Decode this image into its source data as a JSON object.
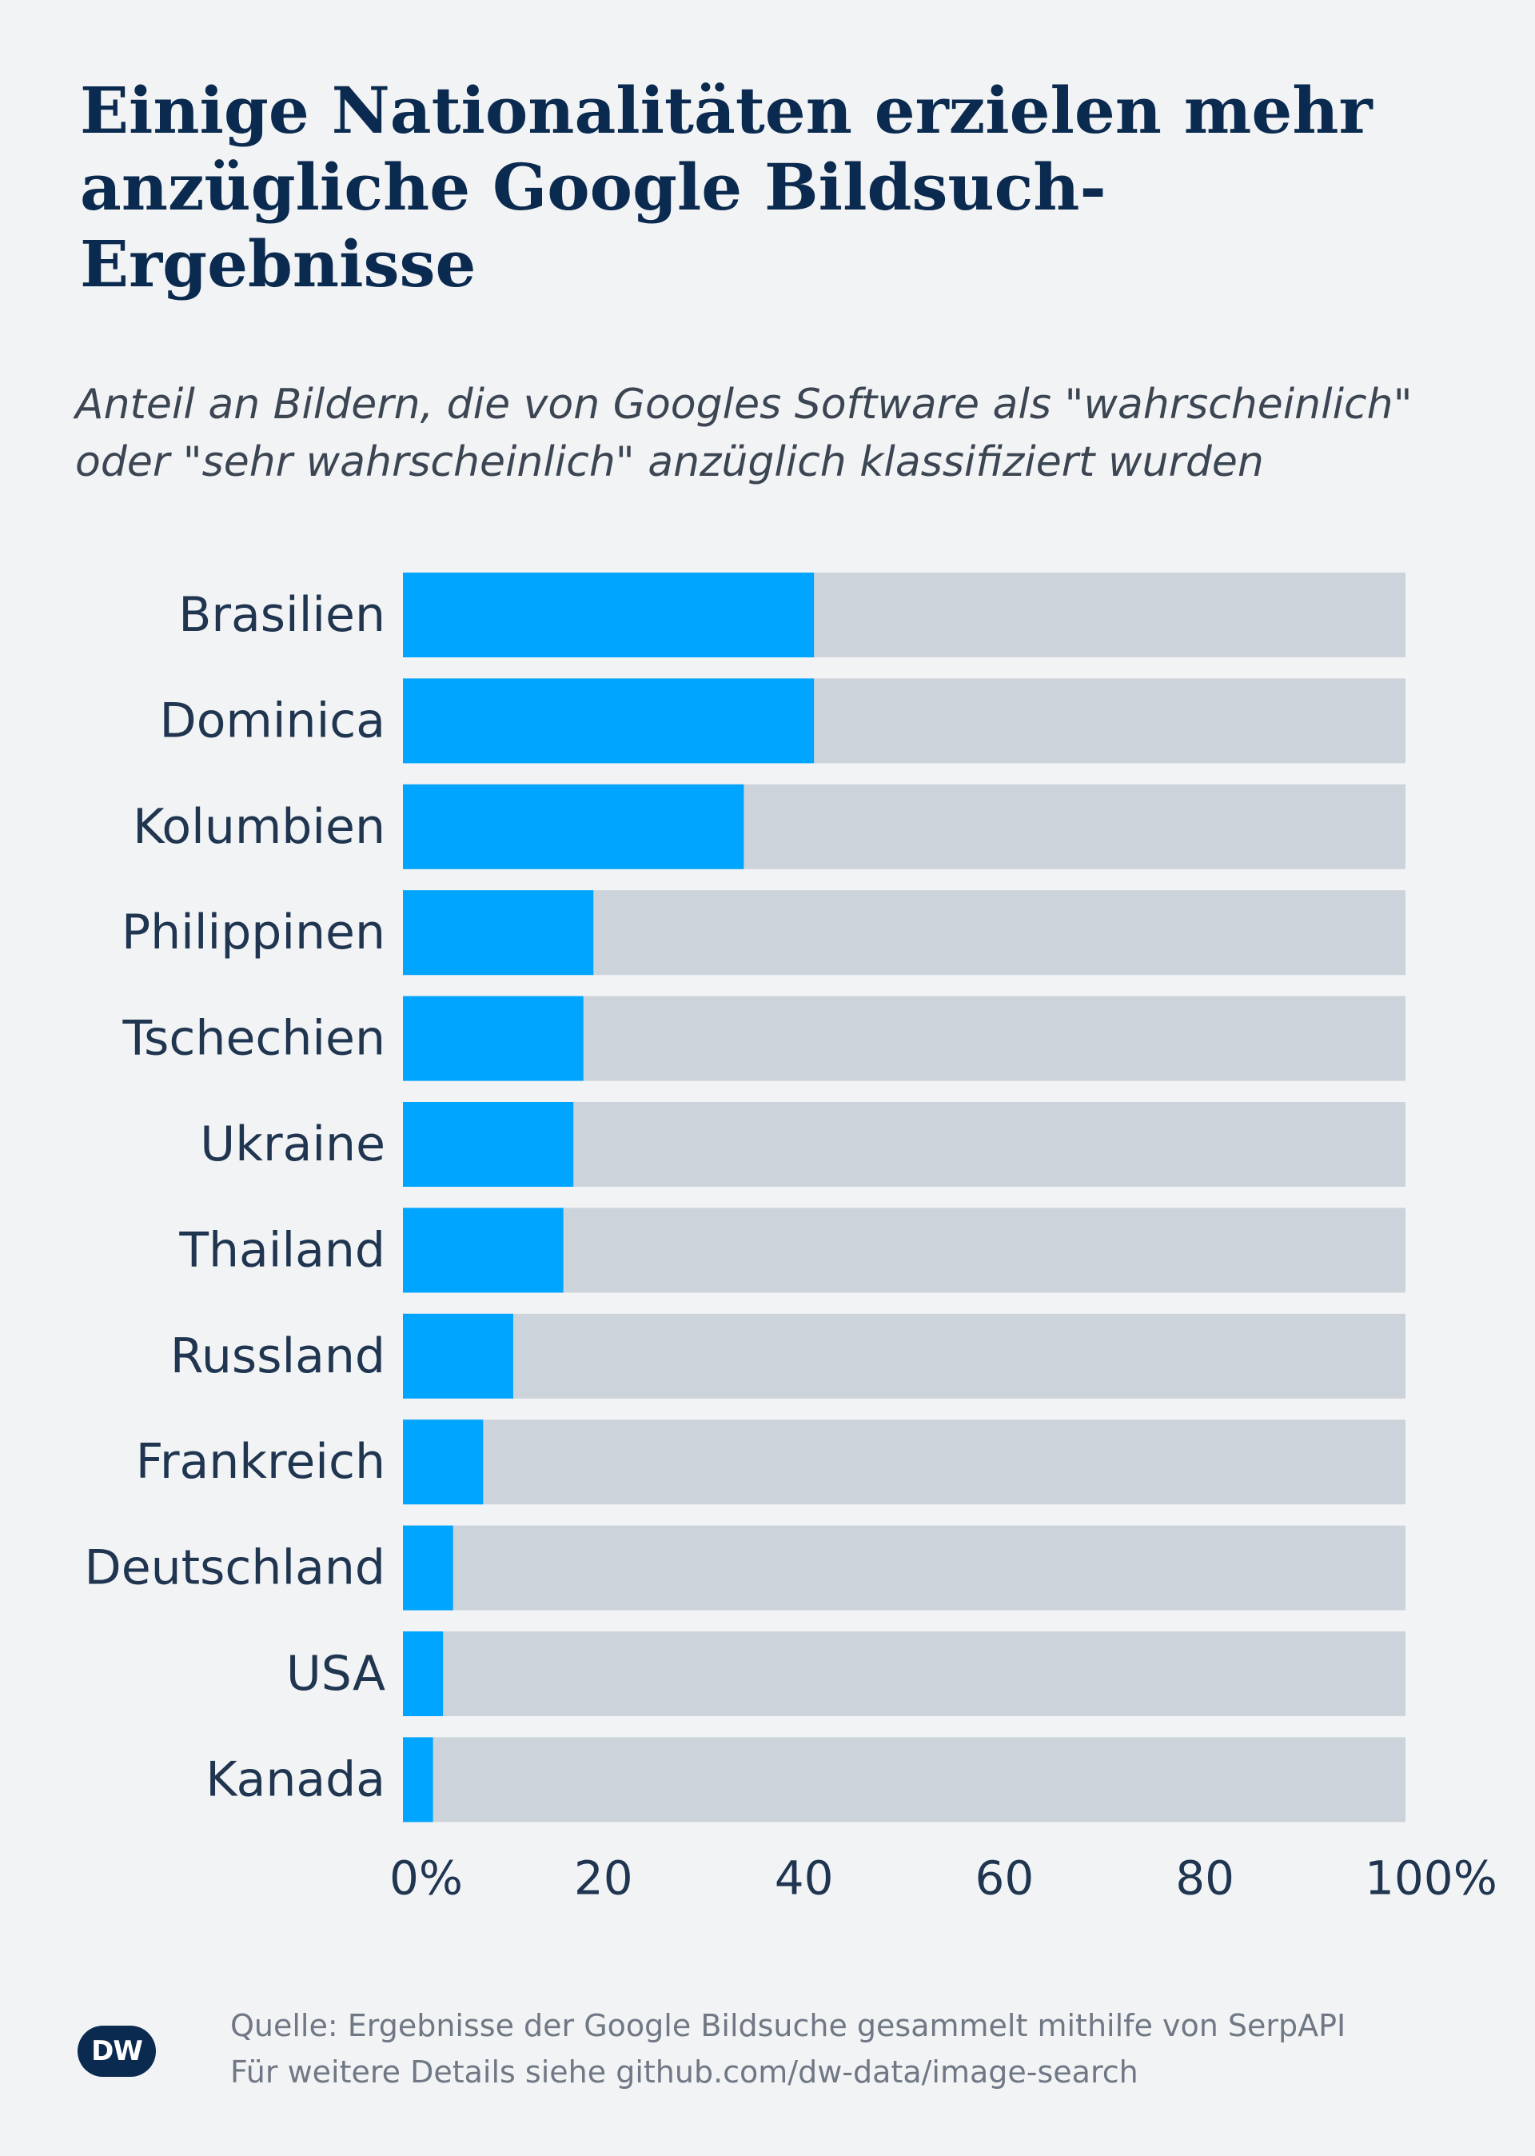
{
  "header": {
    "title_line1": "Einige Nationalitäten erzielen mehr",
    "title_line2": "anzügliche Google Bildsuch-Ergebnisse",
    "subtitle_line1": "Anteil an Bildern, die von Googles Software als \"wahrscheinlich\"",
    "subtitle_line2": "oder \"sehr wahrscheinlich\" anzüglich klassifiziert wurden"
  },
  "chart_data": {
    "type": "bar",
    "orientation": "horizontal",
    "stacked_to_100": true,
    "categories": [
      "Brasilien",
      "Dominica",
      "Kolumbien",
      "Philippinen",
      "Tschechien",
      "Ukraine",
      "Thailand",
      "Russland",
      "Frankreich",
      "Deutschland",
      "USA",
      "Kanada"
    ],
    "values": [
      41,
      41,
      34,
      19,
      18,
      17,
      16,
      11,
      8,
      5,
      4,
      3
    ],
    "xlim": [
      0,
      100
    ],
    "ticks": [
      {
        "value": 0,
        "label": "0",
        "unit": "%"
      },
      {
        "value": 20,
        "label": "20",
        "unit": ""
      },
      {
        "value": 40,
        "label": "40",
        "unit": ""
      },
      {
        "value": 60,
        "label": "60",
        "unit": ""
      },
      {
        "value": 80,
        "label": "80",
        "unit": ""
      },
      {
        "value": 100,
        "label": "100",
        "unit": "%"
      }
    ],
    "grid": false,
    "legend": "none",
    "colors": {
      "value_bar": "#00a5ff",
      "remainder_bar": "#cdd3da"
    }
  },
  "footer": {
    "logo_text": "DW",
    "source_line1": "Quelle: Ergebnisse der Google Bildsuche gesammelt mithilfe von SerpAPI",
    "source_line2": "Für weitere Details siehe github.com/dw-data/image-search"
  }
}
